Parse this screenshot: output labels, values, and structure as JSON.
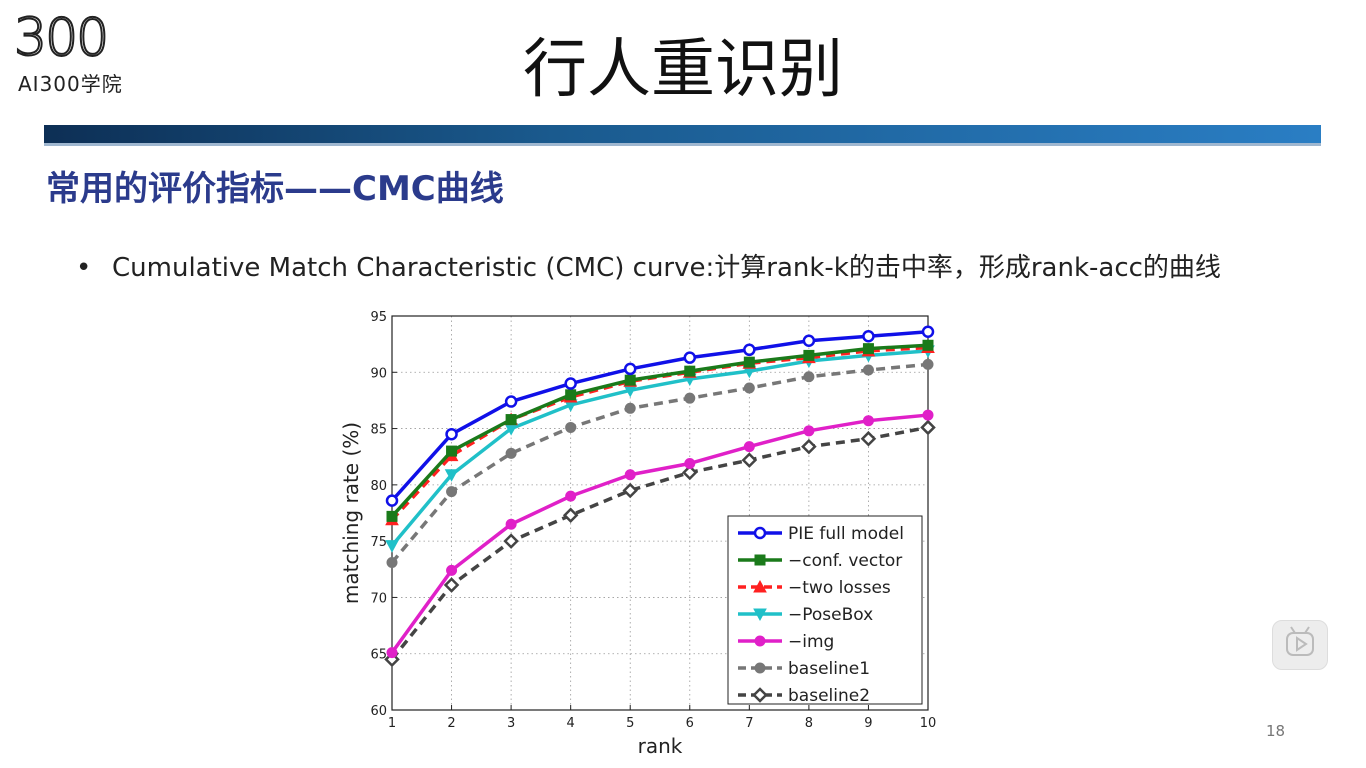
{
  "logo": {
    "number": "300",
    "subtitle": "AI300学院"
  },
  "slide_title": "行人重识别",
  "section_heading": "常用的评价指标——CMC曲线",
  "bullet": {
    "dot": "•",
    "text": "Cumulative Match Characteristic (CMC) curve:计算rank-k的击中率，形成rank-acc的曲线"
  },
  "page_number": "18",
  "icons": {
    "play": "play-icon"
  },
  "chart_data": {
    "type": "line",
    "xlabel": "rank",
    "ylabel": "matching rate (%)",
    "x": [
      1,
      2,
      3,
      4,
      5,
      6,
      7,
      8,
      9,
      10
    ],
    "xlim": [
      1,
      10
    ],
    "ylim": [
      60,
      95
    ],
    "yticks": [
      60,
      65,
      70,
      75,
      80,
      85,
      90,
      95
    ],
    "grid": true,
    "legend_position": "bottom-right",
    "series": [
      {
        "name": "PIE full model",
        "color": "#1010e8",
        "dash": "solid",
        "marker": "circle-open",
        "values": [
          78.6,
          84.5,
          87.4,
          89.0,
          90.3,
          91.3,
          92.0,
          92.8,
          93.2,
          93.6
        ]
      },
      {
        "name": "−conf. vector",
        "color": "#1a7a1a",
        "dash": "solid",
        "marker": "square",
        "values": [
          77.2,
          83.0,
          85.8,
          88.0,
          89.3,
          90.1,
          90.9,
          91.5,
          92.1,
          92.4
        ]
      },
      {
        "name": "−two losses",
        "color": "#ff2020",
        "dash": "dashed",
        "marker": "triangle-up",
        "values": [
          76.9,
          82.6,
          85.8,
          87.8,
          89.2,
          90.0,
          90.8,
          91.3,
          91.9,
          92.2
        ]
      },
      {
        "name": "−PoseBox",
        "color": "#20c0c8",
        "dash": "solid",
        "marker": "triangle-down",
        "values": [
          74.6,
          80.9,
          85.0,
          87.1,
          88.4,
          89.4,
          90.1,
          91.0,
          91.5,
          91.9
        ]
      },
      {
        "name": "−img",
        "color": "#e020c8",
        "dash": "solid",
        "marker": "circle",
        "values": [
          65.1,
          72.4,
          76.5,
          79.0,
          80.9,
          81.9,
          83.4,
          84.8,
          85.7,
          86.2
        ]
      },
      {
        "name": "baseline1",
        "color": "#777777",
        "dash": "dashed",
        "marker": "circle",
        "values": [
          73.1,
          79.4,
          82.8,
          85.1,
          86.8,
          87.7,
          88.6,
          89.6,
          90.2,
          90.7
        ]
      },
      {
        "name": "baseline2",
        "color": "#444444",
        "dash": "dashed",
        "marker": "diamond-open",
        "values": [
          64.5,
          71.1,
          75.0,
          77.3,
          79.5,
          81.1,
          82.2,
          83.4,
          84.1,
          85.1
        ]
      }
    ]
  }
}
